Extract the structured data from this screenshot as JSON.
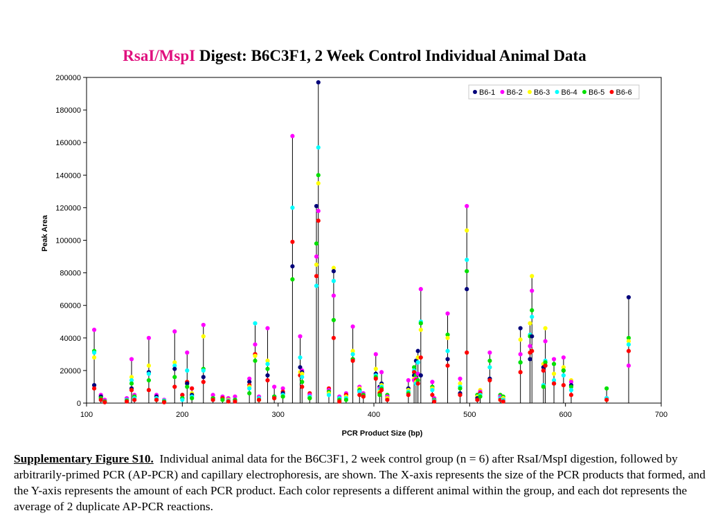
{
  "title": {
    "accent": "RsaI/MspI",
    "rest": " Digest: B6C3F1, 2 Week Control Individual Animal Data"
  },
  "caption": {
    "label": "Supplementary Figure S10.",
    "text": "Individual animal data for the B6C3F1, 2 week control group (n = 6) after RsaI/MspI digestion, followed by arbitrarily-primed PCR (AP-PCR) and capillary electrophoresis, are shown.  The X-axis represents the size of the PCR products that formed, and the Y-axis represents the amount of each PCR product.  Each color represents a different animal within the group, and each dot represents the average of 2 duplicate AP-PCR reactions."
  },
  "chart_data": {
    "type": "scatter",
    "style": "stem",
    "xlabel": "PCR Product Size (bp)",
    "ylabel": "Peak Area",
    "xlim": [
      100,
      700
    ],
    "ylim": [
      0,
      200000
    ],
    "xticks": [
      100,
      200,
      300,
      400,
      500,
      600,
      700
    ],
    "yticks": [
      0,
      20000,
      40000,
      60000,
      80000,
      100000,
      120000,
      140000,
      160000,
      180000,
      200000
    ],
    "legend_position": "top-right",
    "series": [
      {
        "name": "B6-1",
        "color": "#00007a"
      },
      {
        "name": "B6-2",
        "color": "#ff00ff"
      },
      {
        "name": "B6-3",
        "color": "#ffff00"
      },
      {
        "name": "B6-4",
        "color": "#00ffff"
      },
      {
        "name": "B6-5",
        "color": "#00e000"
      },
      {
        "name": "B6-6",
        "color": "#ff0000"
      }
    ],
    "peaks": [
      {
        "x": 108,
        "values": [
          11000,
          45000,
          28000,
          31000,
          32000,
          9000
        ]
      },
      {
        "x": 115,
        "values": [
          4000,
          5000,
          3000,
          2000,
          3000,
          2000
        ]
      },
      {
        "x": 119,
        "values": [
          1000,
          2000,
          1000,
          1000,
          1000,
          500
        ]
      },
      {
        "x": 142,
        "values": [
          2000,
          3000,
          1500,
          2000,
          1500,
          1000
        ]
      },
      {
        "x": 147,
        "values": [
          9000,
          27000,
          16000,
          14000,
          12000,
          8000
        ]
      },
      {
        "x": 150,
        "values": [
          4000,
          5000,
          4000,
          3000,
          4000,
          2000
        ]
      },
      {
        "x": 165,
        "values": [
          19000,
          40000,
          23000,
          18000,
          14000,
          8000
        ]
      },
      {
        "x": 173,
        "values": [
          4000,
          5000,
          3000,
          3000,
          2000,
          2000
        ]
      },
      {
        "x": 181,
        "values": [
          1000,
          2000,
          1000,
          1500,
          1000,
          500
        ]
      },
      {
        "x": 192,
        "values": [
          21000,
          44000,
          25000,
          23000,
          16000,
          10000
        ]
      },
      {
        "x": 200,
        "values": [
          3000,
          5000,
          3000,
          2000,
          3000,
          5000
        ]
      },
      {
        "x": 205,
        "values": [
          12000,
          31000,
          13000,
          20000,
          10000,
          13000
        ]
      },
      {
        "x": 210,
        "values": [
          5000,
          9000,
          6000,
          4000,
          3000,
          9000
        ]
      },
      {
        "x": 222,
        "values": [
          16000,
          48000,
          41000,
          20000,
          21000,
          13000
        ]
      },
      {
        "x": 232,
        "values": [
          3000,
          5000,
          3000,
          2000,
          3000,
          2000
        ]
      },
      {
        "x": 242,
        "values": [
          3000,
          4000,
          2000,
          3000,
          2000,
          3000
        ]
      },
      {
        "x": 248,
        "values": [
          2000,
          3000,
          2000,
          1500,
          1000,
          1000
        ]
      },
      {
        "x": 255,
        "values": [
          2000,
          4000,
          2000,
          2000,
          2000,
          1000
        ]
      },
      {
        "x": 270,
        "values": [
          13000,
          15000,
          10000,
          9000,
          6000,
          11000
        ]
      },
      {
        "x": 276,
        "values": [
          30000,
          36000,
          29000,
          49000,
          26000,
          30000
        ]
      },
      {
        "x": 280,
        "values": [
          3000,
          4000,
          2000,
          3000,
          2000,
          2000
        ]
      },
      {
        "x": 289,
        "values": [
          17000,
          46000,
          26000,
          24000,
          21000,
          14000
        ]
      },
      {
        "x": 296,
        "values": [
          4000,
          10000,
          3000,
          3000,
          4000,
          3000
        ]
      },
      {
        "x": 305,
        "values": [
          6000,
          9000,
          4000,
          5000,
          4000,
          7000
        ]
      },
      {
        "x": 315,
        "values": [
          84000,
          164000,
          76000,
          120000,
          76000,
          99000
        ]
      },
      {
        "x": 323,
        "values": [
          22000,
          41000,
          19000,
          28000,
          17000,
          17000
        ]
      },
      {
        "x": 325,
        "values": [
          19000,
          20000,
          18000,
          16000,
          13000,
          10000
        ]
      },
      {
        "x": 333,
        "values": [
          3000,
          5000,
          3000,
          4000,
          3000,
          6000
        ]
      },
      {
        "x": 340,
        "values": [
          121000,
          90000,
          85000,
          72000,
          98000,
          78000
        ]
      },
      {
        "x": 342,
        "values": [
          197000,
          118000,
          135000,
          157000,
          140000,
          112000
        ]
      },
      {
        "x": 353,
        "values": [
          6000,
          8000,
          6000,
          5000,
          7000,
          9000
        ]
      },
      {
        "x": 358,
        "values": [
          81000,
          66000,
          83000,
          75000,
          51000,
          40000
        ]
      },
      {
        "x": 364,
        "values": [
          3000,
          4000,
          2000,
          3000,
          2000,
          1000
        ]
      },
      {
        "x": 371,
        "values": [
          5000,
          6000,
          4000,
          3000,
          2000,
          5000
        ]
      },
      {
        "x": 378,
        "values": [
          27000,
          47000,
          32000,
          30000,
          27000,
          26000
        ]
      },
      {
        "x": 385,
        "values": [
          7000,
          10000,
          9000,
          7000,
          8000,
          5000
        ]
      },
      {
        "x": 389,
        "values": [
          5000,
          6000,
          5000,
          4000,
          5000,
          4000
        ]
      },
      {
        "x": 402,
        "values": [
          18000,
          30000,
          21000,
          17000,
          16000,
          15000
        ]
      },
      {
        "x": 406,
        "values": [
          10000,
          9000,
          7000,
          8000,
          5000,
          6000
        ]
      },
      {
        "x": 408,
        "values": [
          12000,
          19000,
          11000,
          10000,
          9000,
          8000
        ]
      },
      {
        "x": 414,
        "values": [
          3000,
          4000,
          3000,
          2000,
          5000,
          2000
        ]
      },
      {
        "x": 436,
        "values": [
          9000,
          14000,
          8000,
          7000,
          6000,
          5000
        ]
      },
      {
        "x": 442,
        "values": [
          17000,
          14000,
          15000,
          20000,
          22000,
          19000
        ]
      },
      {
        "x": 444,
        "values": [
          26000,
          15000,
          13000,
          12000,
          17000,
          14000
        ]
      },
      {
        "x": 446,
        "values": [
          32000,
          18000,
          28000,
          25000,
          14000,
          12000
        ]
      },
      {
        "x": 449,
        "values": [
          17000,
          70000,
          45000,
          50000,
          49000,
          28000
        ]
      },
      {
        "x": 461,
        "values": [
          9000,
          13000,
          9000,
          8000,
          10000,
          5000
        ]
      },
      {
        "x": 463,
        "values": [
          2000,
          3000,
          2000,
          1500,
          2000,
          1000
        ]
      },
      {
        "x": 477,
        "values": [
          27000,
          55000,
          40000,
          32000,
          42000,
          23000
        ]
      },
      {
        "x": 490,
        "values": [
          6000,
          15000,
          12000,
          10000,
          9000,
          5000
        ]
      },
      {
        "x": 497,
        "values": [
          70000,
          121000,
          106000,
          88000,
          81000,
          31000
        ]
      },
      {
        "x": 508,
        "values": [
          3000,
          5000,
          4000,
          2000,
          5000,
          2000
        ]
      },
      {
        "x": 511,
        "values": [
          6000,
          7000,
          8000,
          5000,
          4000,
          6000
        ]
      },
      {
        "x": 521,
        "values": [
          15000,
          31000,
          22000,
          22000,
          26000,
          14000
        ]
      },
      {
        "x": 532,
        "values": [
          3000,
          4000,
          2000,
          3000,
          5000,
          2000
        ]
      },
      {
        "x": 535,
        "values": [
          2000,
          3000,
          3000,
          2000,
          4000,
          1000
        ]
      },
      {
        "x": 553,
        "values": [
          46000,
          30000,
          39000,
          25000,
          25000,
          19000
        ]
      },
      {
        "x": 563,
        "values": [
          27000,
          35000,
          49000,
          42000,
          41000,
          31000
        ]
      },
      {
        "x": 565,
        "values": [
          41000,
          69000,
          78000,
          53000,
          57000,
          32000
        ]
      },
      {
        "x": 577,
        "values": [
          22000,
          20000,
          24000,
          11000,
          10000,
          20000
        ]
      },
      {
        "x": 579,
        "values": [
          23000,
          38000,
          46000,
          26000,
          25000,
          23000
        ]
      },
      {
        "x": 588,
        "values": [
          12000,
          27000,
          18000,
          14000,
          24000,
          12000
        ]
      },
      {
        "x": 598,
        "values": [
          20000,
          28000,
          22000,
          17000,
          20000,
          11000
        ]
      },
      {
        "x": 606,
        "values": [
          11000,
          13000,
          14000,
          8000,
          10000,
          5000
        ]
      },
      {
        "x": 643,
        "values": [
          3000,
          3000,
          2000,
          3000,
          9000,
          2000
        ]
      },
      {
        "x": 666,
        "values": [
          65000,
          23000,
          38000,
          36000,
          40000,
          32000
        ]
      }
    ]
  }
}
